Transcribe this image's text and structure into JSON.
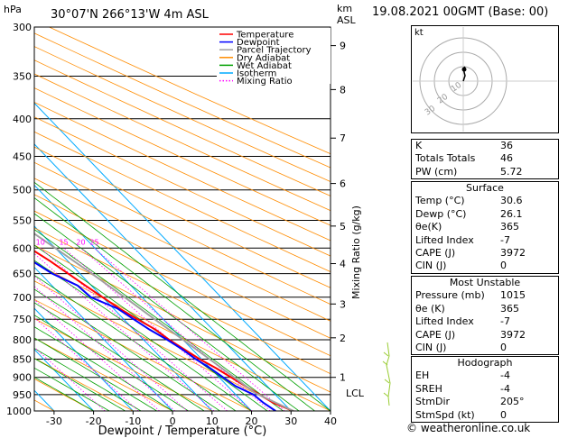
{
  "header": {
    "pressure_unit": "hPa",
    "location": "30°07'N  266°13'W  4m  ASL",
    "height_unit_line1": "km",
    "height_unit_line2": "ASL",
    "date": "19.08.2021  00GMT  (Base: 00)"
  },
  "colors": {
    "temperature": "#ff0000",
    "dewpoint": "#0000ff",
    "parcel": "#a0a0a0",
    "dry_adiabat": "#ff8c00",
    "wet_adiabat": "#00a000",
    "isotherm": "#00aaff",
    "mixing_ratio": "#ff00ff",
    "wind": "#99cc33"
  },
  "chart_data": {
    "type": "line",
    "xlabel": "Dewpoint / Temperature (°C)",
    "ylabel_right": "Mixing Ratio (g/kg)",
    "xlim": [
      -35,
      40
    ],
    "ylim_hpa": [
      1000,
      300
    ],
    "y_scale": "log",
    "x_ticks": [
      "-30",
      "-20",
      "-10",
      "0",
      "10",
      "20",
      "30",
      "40"
    ],
    "pressure_ticks": [
      "300",
      "350",
      "400",
      "450",
      "500",
      "550",
      "600",
      "650",
      "700",
      "750",
      "800",
      "850",
      "900",
      "950",
      "1000"
    ],
    "km_ticks": [
      {
        "label": "9",
        "p": 318
      },
      {
        "label": "8",
        "p": 365
      },
      {
        "label": "7",
        "p": 425
      },
      {
        "label": "6",
        "p": 490
      },
      {
        "label": "5",
        "p": 560
      },
      {
        "label": "4",
        "p": 630
      },
      {
        "label": "3",
        "p": 715
      },
      {
        "label": "2",
        "p": 795
      },
      {
        "label": "1",
        "p": 900
      }
    ],
    "lcl": {
      "label": "LCL",
      "p": 945
    },
    "mixing_ratio_labels": [
      "1",
      "2",
      "3",
      "4",
      "5",
      "8",
      "10",
      "15",
      "20",
      "25"
    ],
    "mixing_ratio_values": [
      1,
      2,
      3,
      4,
      5,
      8,
      10,
      15,
      20,
      25
    ],
    "legend": [
      "Temperature",
      "Dewpoint",
      "Parcel Trajectory",
      "Dry Adiabat",
      "Wet Adiabat",
      "Isotherm",
      "Mixing Ratio"
    ],
    "series": [
      {
        "name": "Temperature",
        "points": [
          [
            1000,
            30.6
          ],
          [
            975,
            27.5
          ],
          [
            950,
            26
          ],
          [
            925,
            24.5
          ],
          [
            900,
            23
          ],
          [
            875,
            21.5
          ],
          [
            850,
            19.5
          ],
          [
            825,
            18
          ],
          [
            800,
            16.5
          ],
          [
            775,
            15.5
          ],
          [
            750,
            13.5
          ],
          [
            725,
            11.5
          ],
          [
            700,
            10
          ],
          [
            675,
            8.5
          ],
          [
            650,
            7
          ],
          [
            625,
            5.5
          ],
          [
            600,
            3.5
          ],
          [
            575,
            1
          ],
          [
            550,
            -1.5
          ],
          [
            525,
            -4
          ],
          [
            500,
            -6
          ],
          [
            475,
            -9
          ],
          [
            450,
            -12
          ],
          [
            425,
            -15
          ],
          [
            400,
            -18
          ],
          [
            375,
            -22
          ],
          [
            350,
            -26
          ],
          [
            325,
            -30
          ],
          [
            300,
            -34
          ]
        ]
      },
      {
        "name": "Dewpoint",
        "points": [
          [
            1000,
            26.1
          ],
          [
            975,
            25
          ],
          [
            950,
            24.5
          ],
          [
            925,
            22
          ],
          [
            900,
            21
          ],
          [
            875,
            20
          ],
          [
            850,
            18.5
          ],
          [
            825,
            17.5
          ],
          [
            800,
            16
          ],
          [
            775,
            14
          ],
          [
            750,
            12.5
          ],
          [
            725,
            11
          ],
          [
            700,
            7
          ],
          [
            675,
            6.5
          ],
          [
            650,
            3
          ],
          [
            625,
            1
          ],
          [
            600,
            -2
          ],
          [
            575,
            -6
          ],
          [
            550,
            -10
          ],
          [
            525,
            -10
          ],
          [
            500,
            -9
          ],
          [
            480,
            -12
          ],
          [
            460,
            -13
          ],
          [
            445,
            -14
          ],
          [
            425,
            -19
          ],
          [
            410,
            -20
          ],
          [
            400,
            -23
          ],
          [
            380,
            -24
          ],
          [
            365,
            -30
          ],
          [
            350,
            -33
          ],
          [
            340,
            -34
          ],
          [
            325,
            -32
          ],
          [
            300,
            -35
          ]
        ]
      },
      {
        "name": "Parcel Trajectory",
        "points": [
          [
            1000,
            30.6
          ],
          [
            945,
            25.3
          ],
          [
            900,
            23.8
          ],
          [
            850,
            22
          ],
          [
            800,
            20
          ],
          [
            750,
            17.8
          ],
          [
            700,
            15.6
          ],
          [
            650,
            13
          ],
          [
            600,
            10
          ],
          [
            550,
            6.5
          ],
          [
            500,
            2.8
          ],
          [
            450,
            -1.5
          ],
          [
            400,
            -6.5
          ],
          [
            350,
            -12.5
          ],
          [
            300,
            -20
          ]
        ]
      }
    ]
  },
  "hodograph": {
    "unit": "kt",
    "ring_labels": [
      "10",
      "20",
      "30"
    ]
  },
  "indices": [
    {
      "label": "K",
      "value": "36"
    },
    {
      "label": "Totals Totals",
      "value": "46"
    },
    {
      "label": "PW (cm)",
      "value": "5.72"
    }
  ],
  "surface": {
    "title": "Surface",
    "rows": [
      {
        "label": "Temp (°C)",
        "value": "30.6"
      },
      {
        "label": "Dewp (°C)",
        "value": "26.1"
      },
      {
        "label": "θe(K)",
        "value": "365"
      },
      {
        "label": "Lifted Index",
        "value": "-7"
      },
      {
        "label": "CAPE (J)",
        "value": "3972"
      },
      {
        "label": "CIN (J)",
        "value": "0"
      }
    ]
  },
  "most_unstable": {
    "title": "Most Unstable",
    "rows": [
      {
        "label": "Pressure (mb)",
        "value": "1015"
      },
      {
        "label": "θe (K)",
        "value": "365"
      },
      {
        "label": "Lifted Index",
        "value": "-7"
      },
      {
        "label": "CAPE (J)",
        "value": "3972"
      },
      {
        "label": "CIN (J)",
        "value": "0"
      }
    ]
  },
  "hodograph_table": {
    "title": "Hodograph",
    "rows": [
      {
        "label": "EH",
        "value": "-4"
      },
      {
        "label": "SREH",
        "value": "-4"
      },
      {
        "label": "StmDir",
        "value": "205°"
      },
      {
        "label": "StmSpd (kt)",
        "value": "0"
      }
    ]
  },
  "footer": "© weatheronline.co.uk"
}
